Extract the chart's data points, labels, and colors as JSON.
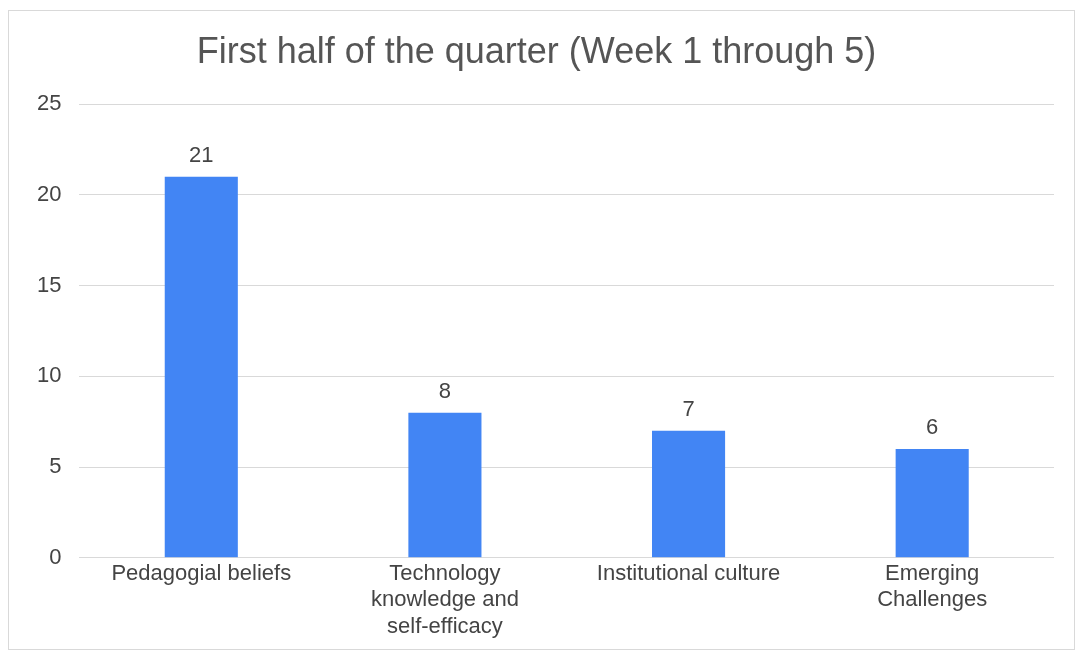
{
  "chart_data": {
    "type": "bar",
    "title": "First half of the quarter (Week 1 through 5)",
    "categories": [
      "Pedagogial beliefs",
      "Technology knowledge and self-efficacy",
      "Institutional culture",
      "Emerging Challenges"
    ],
    "values": [
      21,
      8,
      7,
      6
    ],
    "color": "#4285f4",
    "ylim": [
      0,
      25
    ],
    "yticks": [
      0,
      5,
      10,
      15,
      20,
      25
    ],
    "grid": "y",
    "data_labels": true
  }
}
